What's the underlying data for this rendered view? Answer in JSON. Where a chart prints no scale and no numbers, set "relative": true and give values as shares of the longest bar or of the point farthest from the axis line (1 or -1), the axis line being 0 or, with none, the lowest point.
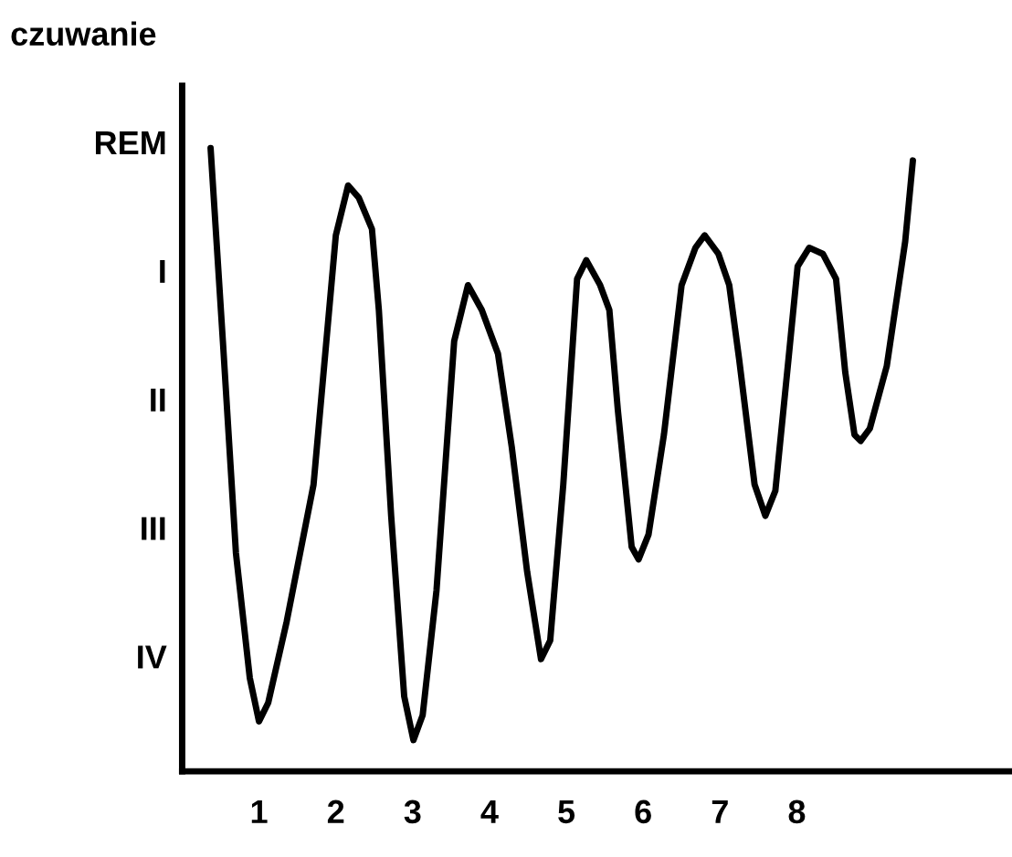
{
  "chart_data": {
    "type": "line",
    "ylabel": "czuwanie",
    "color": "#000000",
    "relative": true,
    "x": [
      0.37,
      0.53,
      0.7,
      0.88,
      1.0,
      1.12,
      1.36,
      1.71,
      2.0,
      2.16,
      2.3,
      2.47,
      2.56,
      2.72,
      2.89,
      3.01,
      3.13,
      3.31,
      3.54,
      3.72,
      3.9,
      4.11,
      4.29,
      4.49,
      4.67,
      4.79,
      4.96,
      5.14,
      5.26,
      5.44,
      5.56,
      5.67,
      5.85,
      5.94,
      6.07,
      6.27,
      6.5,
      6.68,
      6.8,
      6.98,
      7.12,
      7.25,
      7.45,
      7.59,
      7.72,
      7.89,
      8.01,
      8.16,
      8.34,
      8.51,
      8.63,
      8.75,
      8.83,
      8.95,
      9.17,
      9.41,
      9.51
    ],
    "values": [
      1.0,
      0.69,
      0.35,
      0.15,
      0.08,
      0.11,
      0.24,
      0.46,
      0.86,
      0.94,
      0.92,
      0.87,
      0.74,
      0.41,
      0.12,
      0.05,
      0.09,
      0.29,
      0.69,
      0.78,
      0.74,
      0.67,
      0.52,
      0.32,
      0.18,
      0.21,
      0.46,
      0.79,
      0.82,
      0.78,
      0.74,
      0.58,
      0.36,
      0.34,
      0.38,
      0.54,
      0.78,
      0.84,
      0.86,
      0.83,
      0.78,
      0.66,
      0.46,
      0.41,
      0.45,
      0.66,
      0.81,
      0.84,
      0.83,
      0.79,
      0.64,
      0.54,
      0.53,
      0.55,
      0.65,
      0.85,
      0.98
    ],
    "xlim": [
      0,
      10.8
    ],
    "xticks": [
      1,
      2,
      3,
      4,
      5,
      6,
      7,
      8
    ],
    "annotations": [
      "REM",
      "I",
      "II",
      "III",
      "IV"
    ],
    "grid": false,
    "legend": false,
    "marker": "none",
    "line_style": "solid"
  }
}
